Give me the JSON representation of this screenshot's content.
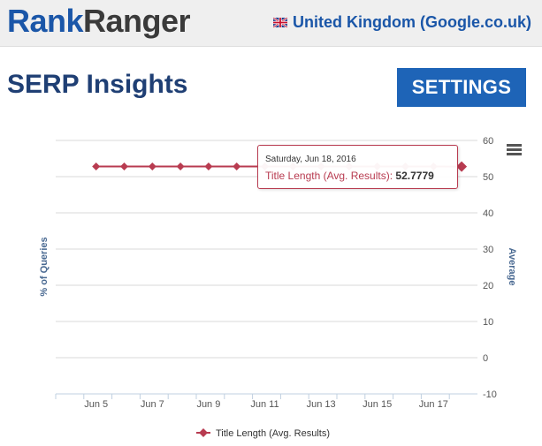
{
  "header": {
    "logo_part1": "Rank",
    "logo_part2": "Ranger",
    "region": "United Kingdom (Google.co.uk)",
    "flag_icon": "uk-flag-icon"
  },
  "page": {
    "title": "SERP Insights",
    "settings_label": "SETTINGS"
  },
  "colors": {
    "brand_blue": "#1a56a8",
    "button_blue": "#1e64b7",
    "series": "#b83b50"
  },
  "chart_data": {
    "type": "line",
    "x": [
      "Jun 4",
      "Jun 5",
      "Jun 6",
      "Jun 7",
      "Jun 8",
      "Jun 9",
      "Jun 10",
      "Jun 11",
      "Jun 12",
      "Jun 13",
      "Jun 14",
      "Jun 15",
      "Jun 16",
      "Jun 17",
      "Jun 18"
    ],
    "x_tick_labels": [
      "Jun 5",
      "Jun 7",
      "Jun 9",
      "Jun 11",
      "Jun 13",
      "Jun 15",
      "Jun 17"
    ],
    "series": [
      {
        "name": "Title Length (Avg. Results)",
        "axis": "right",
        "values": [
          null,
          52.8,
          52.8,
          52.8,
          52.8,
          52.8,
          52.8,
          52.8,
          52.8,
          52.8,
          52.8,
          52.8,
          52.8,
          52.8,
          52.7779
        ]
      }
    ],
    "y_left": {
      "label": "% of Queries"
    },
    "y_right": {
      "label": "Average",
      "range": [
        -10,
        60
      ],
      "ticks": [
        60,
        50,
        40,
        30,
        20,
        10,
        0,
        -10
      ]
    },
    "grid": true,
    "legend": "bottom",
    "tooltip": {
      "date": "Saturday, Jun 18, 2016",
      "series": "Title Length (Avg. Results):",
      "value": "52.7779"
    }
  }
}
